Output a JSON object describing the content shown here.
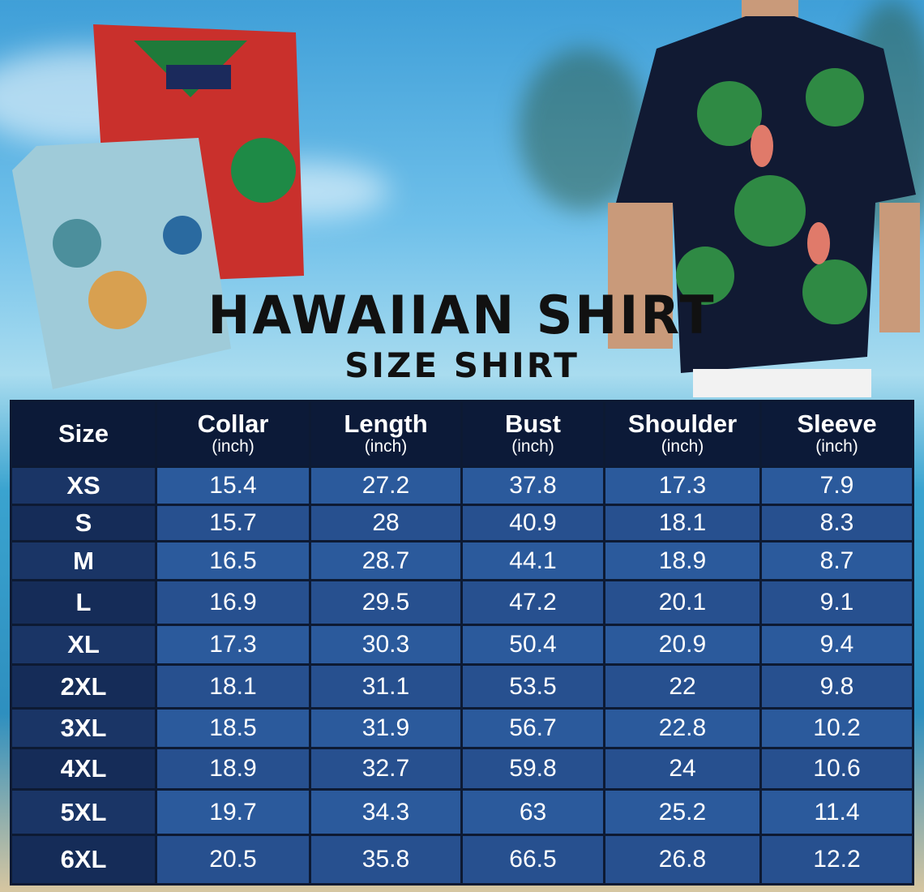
{
  "title": "HAWAIIAN SHIRT",
  "subtitle": "SIZE SHIRT",
  "colors": {
    "header_bg": "#0c1a38",
    "cell_bg": "#2b5a9c",
    "size_col_bg": "#1a3566",
    "text": "#ffffff"
  },
  "table": {
    "headers": [
      {
        "label": "Size",
        "unit": ""
      },
      {
        "label": "Collar",
        "unit": "(inch)"
      },
      {
        "label": "Length",
        "unit": "(inch)"
      },
      {
        "label": "Bust",
        "unit": "(inch)"
      },
      {
        "label": "Shoulder",
        "unit": "(inch)"
      },
      {
        "label": "Sleeve",
        "unit": "(inch)"
      }
    ],
    "rows": [
      [
        "XS",
        "15.4",
        "27.2",
        "37.8",
        "17.3",
        "7.9"
      ],
      [
        "S",
        "15.7",
        "28",
        "40.9",
        "18.1",
        "8.3"
      ],
      [
        "M",
        "16.5",
        "28.7",
        "44.1",
        "18.9",
        "8.7"
      ],
      [
        "L",
        "16.9",
        "29.5",
        "47.2",
        "20.1",
        "9.1"
      ],
      [
        "XL",
        "17.3",
        "30.3",
        "50.4",
        "20.9",
        "9.4"
      ],
      [
        "2XL",
        "18.1",
        "31.1",
        "53.5",
        "22",
        "9.8"
      ],
      [
        "3XL",
        "18.5",
        "31.9",
        "56.7",
        "22.8",
        "10.2"
      ],
      [
        "4XL",
        "18.9",
        "32.7",
        "59.8",
        "24",
        "10.6"
      ],
      [
        "5XL",
        "19.7",
        "34.3",
        "63",
        "25.2",
        "11.4"
      ],
      [
        "6XL",
        "20.5",
        "35.8",
        "66.5",
        "26.8",
        "12.2"
      ]
    ]
  }
}
